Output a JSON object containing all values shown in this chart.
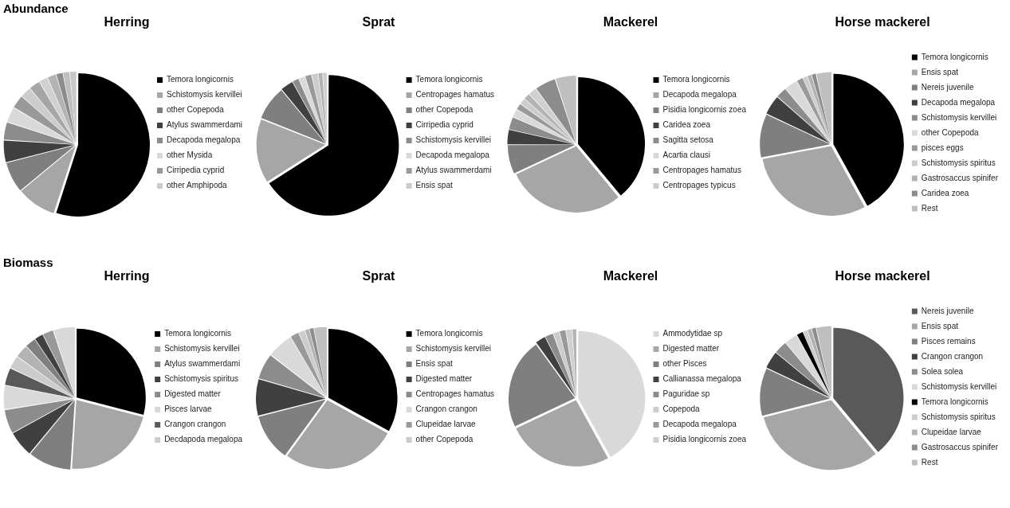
{
  "chart_data": [
    {
      "type": "pie",
      "title": "Herring",
      "annotations": [
        "Abundance"
      ],
      "legend": "right",
      "categories": [
        "Temora longicornis",
        "Schistomysis kervillei",
        "other Copepoda",
        "Atylus swammerdami",
        "Decapoda megalopa",
        "other Mysida",
        "Cirripedia cyprid",
        "other Amphipoda",
        null,
        null,
        null,
        null,
        null,
        null
      ],
      "values": [
        55,
        9,
        7,
        5,
        4,
        3.5,
        3,
        2.5,
        2.5,
        2,
        2,
        1.5,
        1.5,
        1.5
      ],
      "colors": [
        "#000000",
        "#a6a6a6",
        "#7f7f7f",
        "#404040",
        "#8c8c8c",
        "#d9d9d9",
        "#999999",
        "#cccccc",
        "#a6a6a6",
        "#d0d0d0",
        "#b3b3b3",
        "#8c8c8c",
        "#bfbfbf",
        "#c8c8c8"
      ]
    },
    {
      "type": "pie",
      "title": "Sprat",
      "legend": "right",
      "categories": [
        "Temora longicornis",
        "Centropages hamatus",
        "other Copepoda",
        "Cirripedia cyprid",
        "Schistomysis kervillei",
        "Decapoda megalopa",
        "Atylus swammerdami",
        "Ensis spat",
        null,
        null
      ],
      "values": [
        66,
        15,
        8,
        3,
        1.5,
        1.5,
        1.5,
        1.5,
        1,
        1
      ],
      "colors": [
        "#000000",
        "#a6a6a6",
        "#7f7f7f",
        "#404040",
        "#8c8c8c",
        "#d9d9d9",
        "#999999",
        "#cccccc",
        "#b3b3b3",
        "#d0d0d0"
      ]
    },
    {
      "type": "pie",
      "title": "Mackerel",
      "legend": "right",
      "categories": [
        "Temora longicornis",
        "Decapoda megalopa",
        "Pisidia longicornis zoea",
        "Caridea zoea",
        "Sagitta setosa",
        "Acartia clausi",
        "Centropages hamatus",
        "Centropages typicus",
        null,
        null,
        null,
        null
      ],
      "values": [
        39,
        29,
        7,
        3.5,
        3,
        2,
        1.5,
        1.5,
        1.5,
        2,
        5,
        5
      ],
      "colors": [
        "#000000",
        "#a6a6a6",
        "#7f7f7f",
        "#404040",
        "#8c8c8c",
        "#d9d9d9",
        "#999999",
        "#cccccc",
        "#b3b3b3",
        "#d0d0d0",
        "#8c8c8c",
        "#bfbfbf"
      ]
    },
    {
      "type": "pie",
      "title": "Horse mackerel",
      "legend": "right",
      "categories": [
        "Temora longicornis",
        "Ensis spat",
        "Nereis juvenile",
        "Decapoda megalopa",
        "Schistomysis kervillei",
        "other Copepoda",
        "pisces eggs",
        "Schistomysis spiritus",
        "Gastrosaccus spinifer",
        "Caridea zoea",
        "Rest"
      ],
      "values": [
        42,
        30,
        10,
        4.5,
        2.5,
        3,
        1.5,
        1,
        1,
        1,
        3.5
      ],
      "colors": [
        "#000000",
        "#a6a6a6",
        "#7f7f7f",
        "#404040",
        "#8c8c8c",
        "#d9d9d9",
        "#999999",
        "#cccccc",
        "#b3b3b3",
        "#8c8c8c",
        "#bfbfbf"
      ]
    },
    {
      "type": "pie",
      "title": "Herring",
      "annotations": [
        "Biomass"
      ],
      "legend": "right",
      "categories": [
        "Temora longicornis",
        "Schistomysis kervillei",
        "Atylus swammerdami",
        "Schistomysis spiritus",
        "Digested matter",
        "Pisces larvae",
        "Crangon crangon",
        "Decdapoda megalopa",
        null,
        null,
        null,
        null,
        null
      ],
      "values": [
        29,
        22,
        10,
        6,
        5.5,
        5.5,
        4,
        3,
        3,
        2.5,
        2,
        2.5,
        5
      ],
      "colors": [
        "#000000",
        "#a6a6a6",
        "#7f7f7f",
        "#404040",
        "#8c8c8c",
        "#d9d9d9",
        "#595959",
        "#cccccc",
        "#b3b3b3",
        "#7f7f7f",
        "#404040",
        "#999999",
        "#d9d9d9"
      ]
    },
    {
      "type": "pie",
      "title": "Sprat",
      "legend": "right",
      "categories": [
        "Temora longicornis",
        "Schistomysis kervillei",
        "Ensis spat",
        "Digested matter",
        "Centropages hamatus",
        "Crangon crangon",
        "Clupeidae larvae",
        "other Copepoda",
        null,
        null,
        null
      ],
      "values": [
        33,
        27,
        11,
        8.5,
        6,
        6,
        2,
        1.5,
        1,
        1,
        3
      ],
      "colors": [
        "#000000",
        "#a6a6a6",
        "#7f7f7f",
        "#404040",
        "#8c8c8c",
        "#d9d9d9",
        "#999999",
        "#cccccc",
        "#b3b3b3",
        "#8c8c8c",
        "#bfbfbf"
      ]
    },
    {
      "type": "pie",
      "title": "Mackerel",
      "legend": "right",
      "categories": [
        "Ammodytidae sp",
        "Digested matter",
        "other Pisces",
        "Callianassa megalopa",
        "Paguridae sp",
        "Copepoda",
        "Decapoda megalopa",
        "Pisidia longicornis zoea",
        null
      ],
      "values": [
        42,
        26,
        22,
        2.5,
        2,
        1.5,
        1.5,
        1.5,
        1
      ],
      "colors": [
        "#d9d9d9",
        "#a6a6a6",
        "#7f7f7f",
        "#404040",
        "#8c8c8c",
        "#cccccc",
        "#999999",
        "#d0d0d0",
        "#b3b3b3"
      ]
    },
    {
      "type": "pie",
      "title": "Horse mackerel",
      "legend": "right",
      "categories": [
        "Nereis juvenile",
        "Ensis spat",
        "Pisces remains",
        "Crangon crangon",
        "Solea solea",
        "Schistomysis kervillei",
        "Temora longicornis",
        "Schistomysis spiritus",
        "Clupeidae larvae",
        "Gastrosaccus spinifer",
        "Rest"
      ],
      "values": [
        39,
        32,
        11,
        4,
        3,
        3,
        1.5,
        1,
        1,
        1,
        3.5
      ],
      "colors": [
        "#595959",
        "#a6a6a6",
        "#7f7f7f",
        "#404040",
        "#8c8c8c",
        "#d9d9d9",
        "#000000",
        "#cccccc",
        "#b3b3b3",
        "#8c8c8c",
        "#bfbfbf"
      ]
    }
  ]
}
